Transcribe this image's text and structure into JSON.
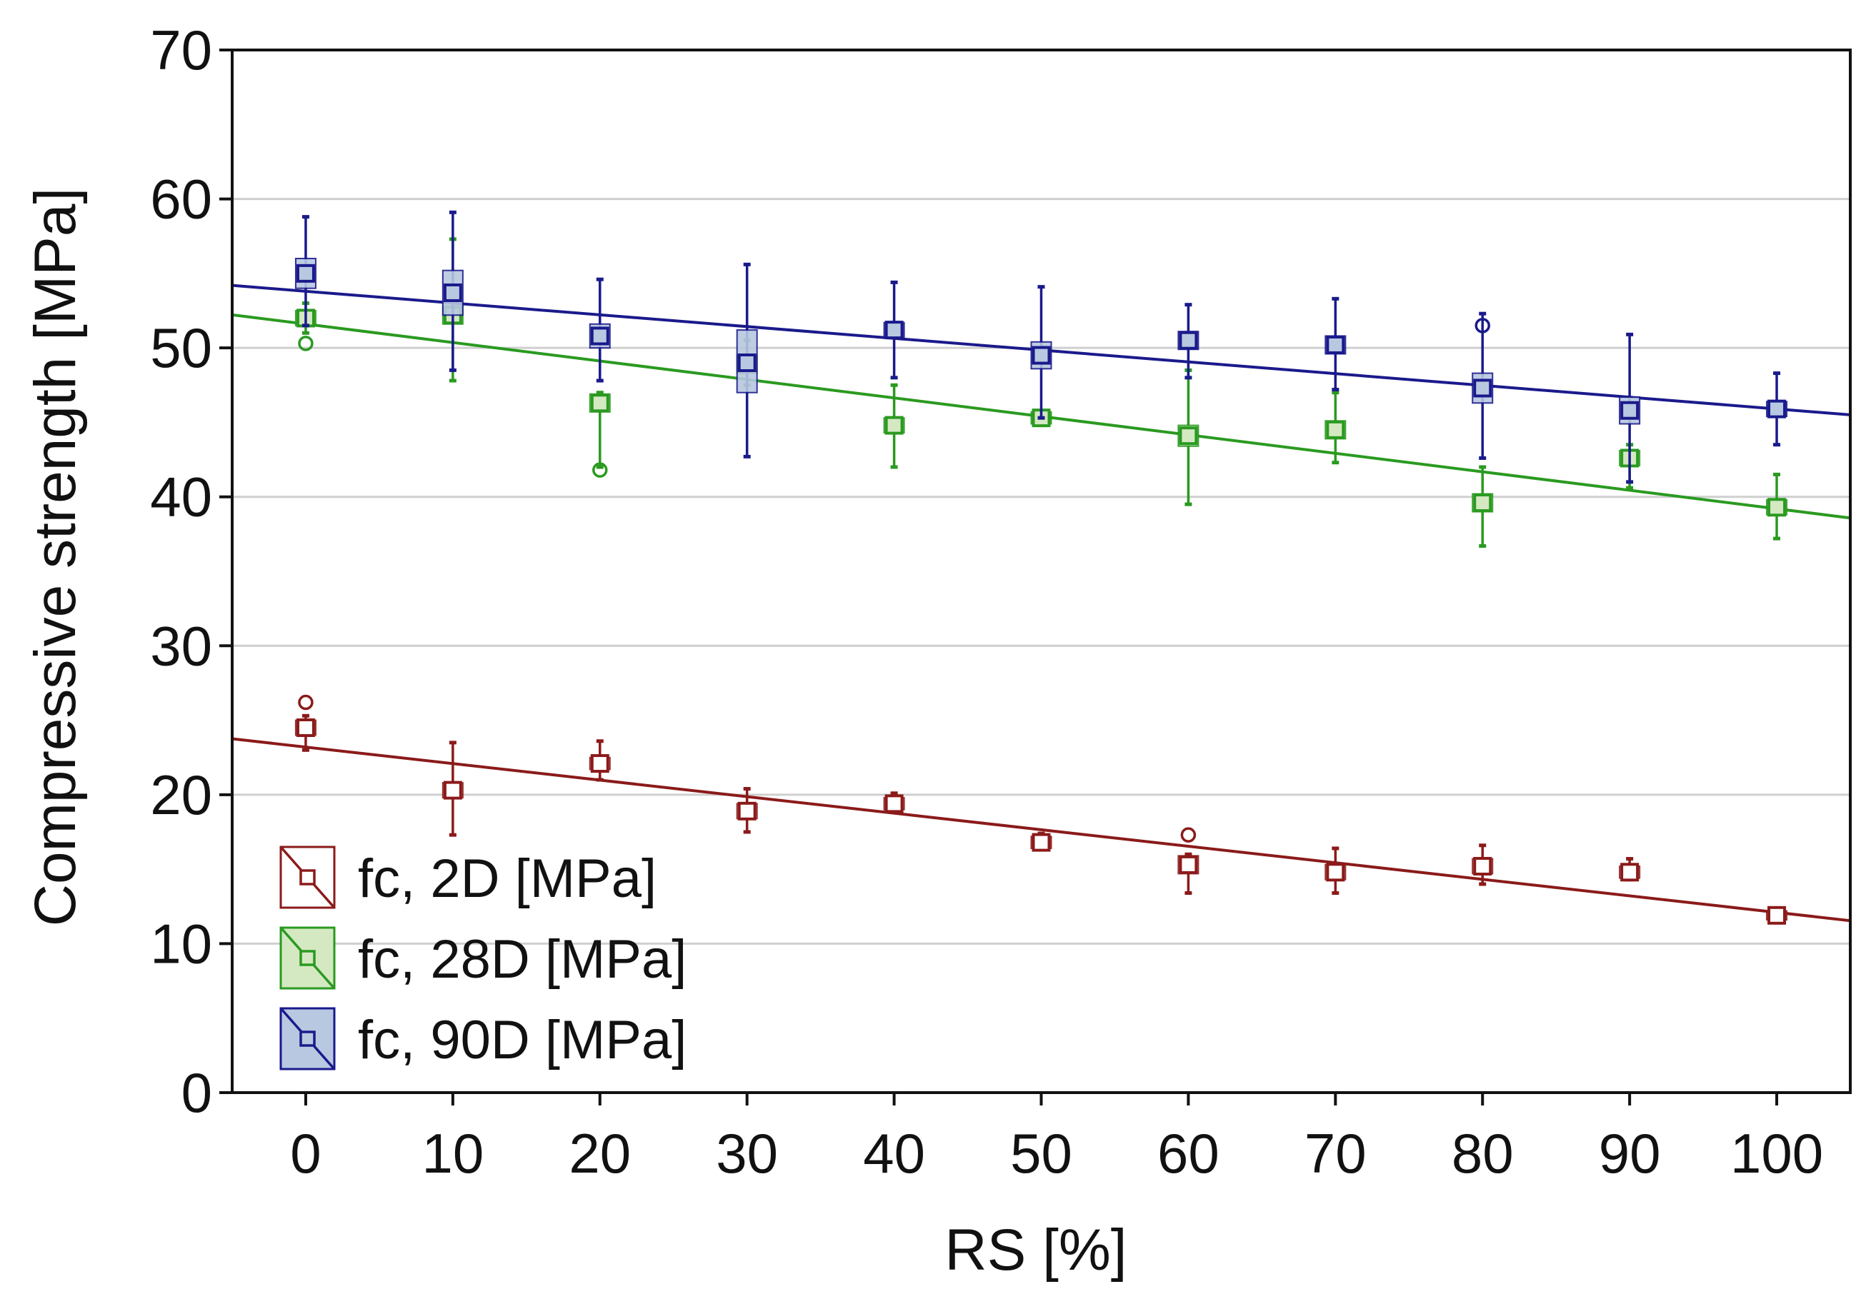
{
  "chart_data": {
    "type": "scatter",
    "title": "",
    "xlabel": "RS [%]",
    "ylabel": "Compressive strength [MPa]",
    "xlim": [
      -5,
      105
    ],
    "ylim": [
      0,
      70
    ],
    "xticks": [
      0,
      10,
      20,
      30,
      40,
      50,
      60,
      70,
      80,
      90,
      100
    ],
    "yticks": [
      0,
      10,
      20,
      30,
      40,
      50,
      60,
      70
    ],
    "grid": "horizontal",
    "legend_position": "bottom-left",
    "x": [
      0,
      10,
      20,
      30,
      40,
      50,
      60,
      70,
      80,
      90,
      100
    ],
    "series": [
      {
        "name": "fc, 2D [MPa]",
        "color": "#8b1a1a",
        "fill": "#ffffff",
        "means": [
          24.5,
          20.3,
          22.1,
          18.9,
          19.4,
          16.8,
          15.3,
          14.8,
          15.2,
          14.8,
          11.9
        ],
        "box_low": [
          24.0,
          19.8,
          21.7,
          18.4,
          19.0,
          16.4,
          14.7,
          14.3,
          14.7,
          14.4,
          11.6
        ],
        "box_high": [
          25.0,
          20.8,
          22.5,
          19.4,
          19.8,
          17.2,
          15.9,
          15.3,
          15.7,
          15.2,
          12.2
        ],
        "whisker_low": [
          23.0,
          17.3,
          21.0,
          17.5,
          19.0,
          16.5,
          13.4,
          13.4,
          14.0,
          14.3,
          11.6
        ],
        "whisker_high": [
          25.3,
          23.5,
          23.6,
          20.4,
          20.1,
          17.4,
          16.0,
          16.4,
          16.6,
          15.7,
          12.2
        ],
        "outliers": [
          [
            0,
            26.2
          ],
          [
            60,
            17.3
          ]
        ],
        "trend": [
          23.2,
          12.1
        ]
      },
      {
        "name": "fc, 28D [MPa]",
        "color": "#2a9a20",
        "fill": "#d4e8c2",
        "means": [
          52.0,
          52.2,
          46.3,
          48.9,
          44.8,
          45.3,
          44.1,
          44.5,
          39.6,
          42.6,
          39.3
        ],
        "box_low": [
          51.5,
          51.6,
          45.7,
          48.3,
          44.3,
          44.9,
          43.4,
          43.9,
          39.0,
          42.1,
          38.8
        ],
        "box_high": [
          52.5,
          52.8,
          46.9,
          49.5,
          45.3,
          45.7,
          44.8,
          45.1,
          40.2,
          43.1,
          39.8
        ],
        "whisker_low": [
          51.0,
          47.8,
          42.0,
          47.5,
          42.0,
          45.0,
          39.5,
          42.3,
          36.7,
          40.6,
          37.2
        ],
        "whisker_high": [
          53.0,
          57.3,
          47.0,
          50.5,
          47.5,
          45.7,
          48.5,
          47.0,
          42.0,
          43.5,
          41.5
        ],
        "outliers": [
          [
            0,
            50.3
          ],
          [
            20,
            41.8
          ]
        ],
        "trend": [
          51.6,
          39.2
        ]
      },
      {
        "name": "fc, 90D [MPa]",
        "color": "#1a1a8c",
        "fill": "#b8c8e0",
        "means": [
          55.0,
          53.7,
          50.8,
          49.0,
          51.2,
          49.5,
          50.5,
          50.2,
          47.3,
          45.8,
          45.9
        ],
        "box_low": [
          54.0,
          52.2,
          50.0,
          47.0,
          50.7,
          48.6,
          49.9,
          49.6,
          46.3,
          44.9,
          45.4
        ],
        "box_high": [
          56.0,
          55.2,
          51.6,
          51.2,
          51.7,
          50.4,
          51.1,
          50.8,
          48.3,
          46.7,
          46.4
        ],
        "whisker_low": [
          51.5,
          48.5,
          47.8,
          42.7,
          48.0,
          45.3,
          48.0,
          47.2,
          42.6,
          41.0,
          43.5
        ],
        "whisker_high": [
          58.8,
          59.1,
          54.6,
          55.6,
          54.4,
          54.1,
          52.9,
          53.3,
          52.3,
          50.9,
          48.3
        ],
        "outliers": [
          [
            80,
            51.5
          ]
        ],
        "trend": [
          53.8,
          45.9
        ]
      }
    ]
  }
}
